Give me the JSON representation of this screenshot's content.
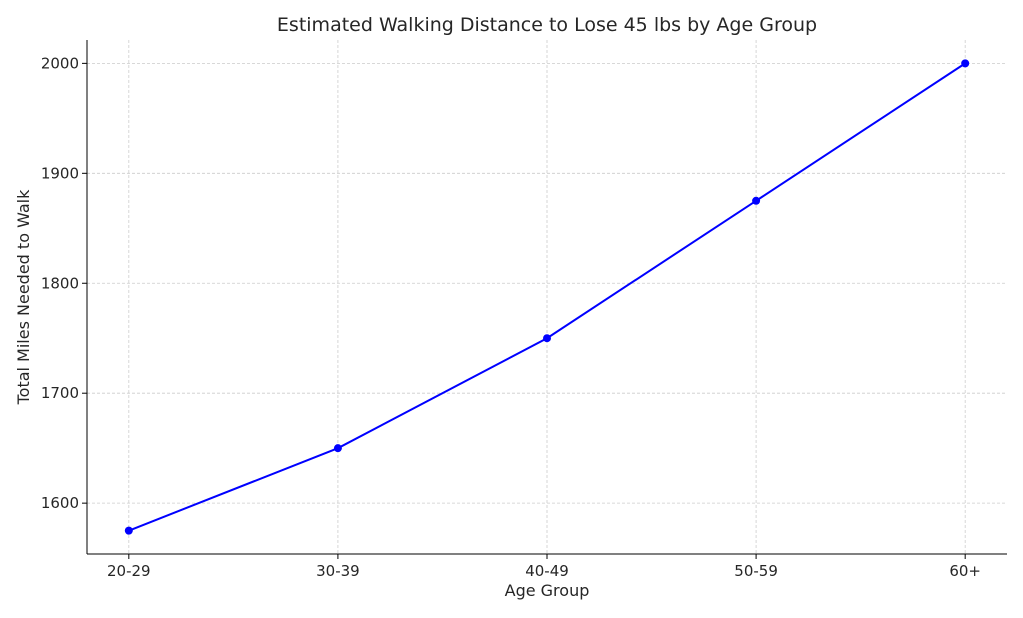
{
  "chart_data": {
    "type": "line",
    "title": "Estimated Walking Distance to Lose 45 lbs by Age Group",
    "xlabel": "Age Group",
    "ylabel": "Total Miles Needed to Walk",
    "categories": [
      "20-29",
      "30-39",
      "40-49",
      "50-59",
      "60+"
    ],
    "values": [
      1575,
      1650,
      1750,
      1875,
      2000
    ],
    "ylim": [
      1553.75,
      2021.25
    ],
    "yticks": [
      1600,
      1700,
      1800,
      1900,
      2000
    ],
    "grid": true,
    "marker": "circle",
    "colors": {
      "line": "#0000ff",
      "grid": "#cccccc",
      "axis": "#000000"
    }
  }
}
